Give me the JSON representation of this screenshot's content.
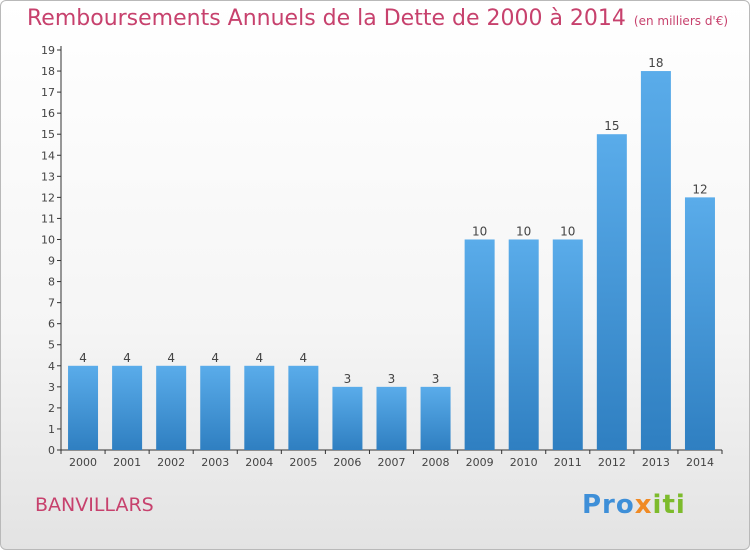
{
  "header": {
    "title": "Remboursements Annuels de la Dette de 2000 à 2014",
    "unit": "(en milliers d'€)"
  },
  "footer": {
    "commune": "BANVILLARS",
    "logo": {
      "p1": "Pro",
      "p2": "x",
      "p3": "iti"
    }
  },
  "colors": {
    "bar_top": "#5aacea",
    "bar_bottom": "#2f7fc1",
    "title": "#c7416d"
  },
  "chart_data": {
    "type": "bar",
    "title": "Remboursements Annuels de la Dette de 2000 à 2014",
    "subtitle": "(en milliers d'€)",
    "xlabel": "",
    "ylabel": "",
    "categories": [
      "2000",
      "2001",
      "2002",
      "2003",
      "2004",
      "2005",
      "2006",
      "2007",
      "2008",
      "2009",
      "2010",
      "2011",
      "2012",
      "2013",
      "2014"
    ],
    "values": [
      4,
      4,
      4,
      4,
      4,
      4,
      3,
      3,
      3,
      10,
      10,
      10,
      15,
      18,
      12
    ],
    "ylim": [
      0,
      19
    ],
    "yticks": [
      0,
      1,
      2,
      3,
      4,
      5,
      6,
      7,
      8,
      9,
      10,
      11,
      12,
      13,
      14,
      15,
      16,
      17,
      18,
      19
    ],
    "grid": false,
    "legend": "none"
  }
}
